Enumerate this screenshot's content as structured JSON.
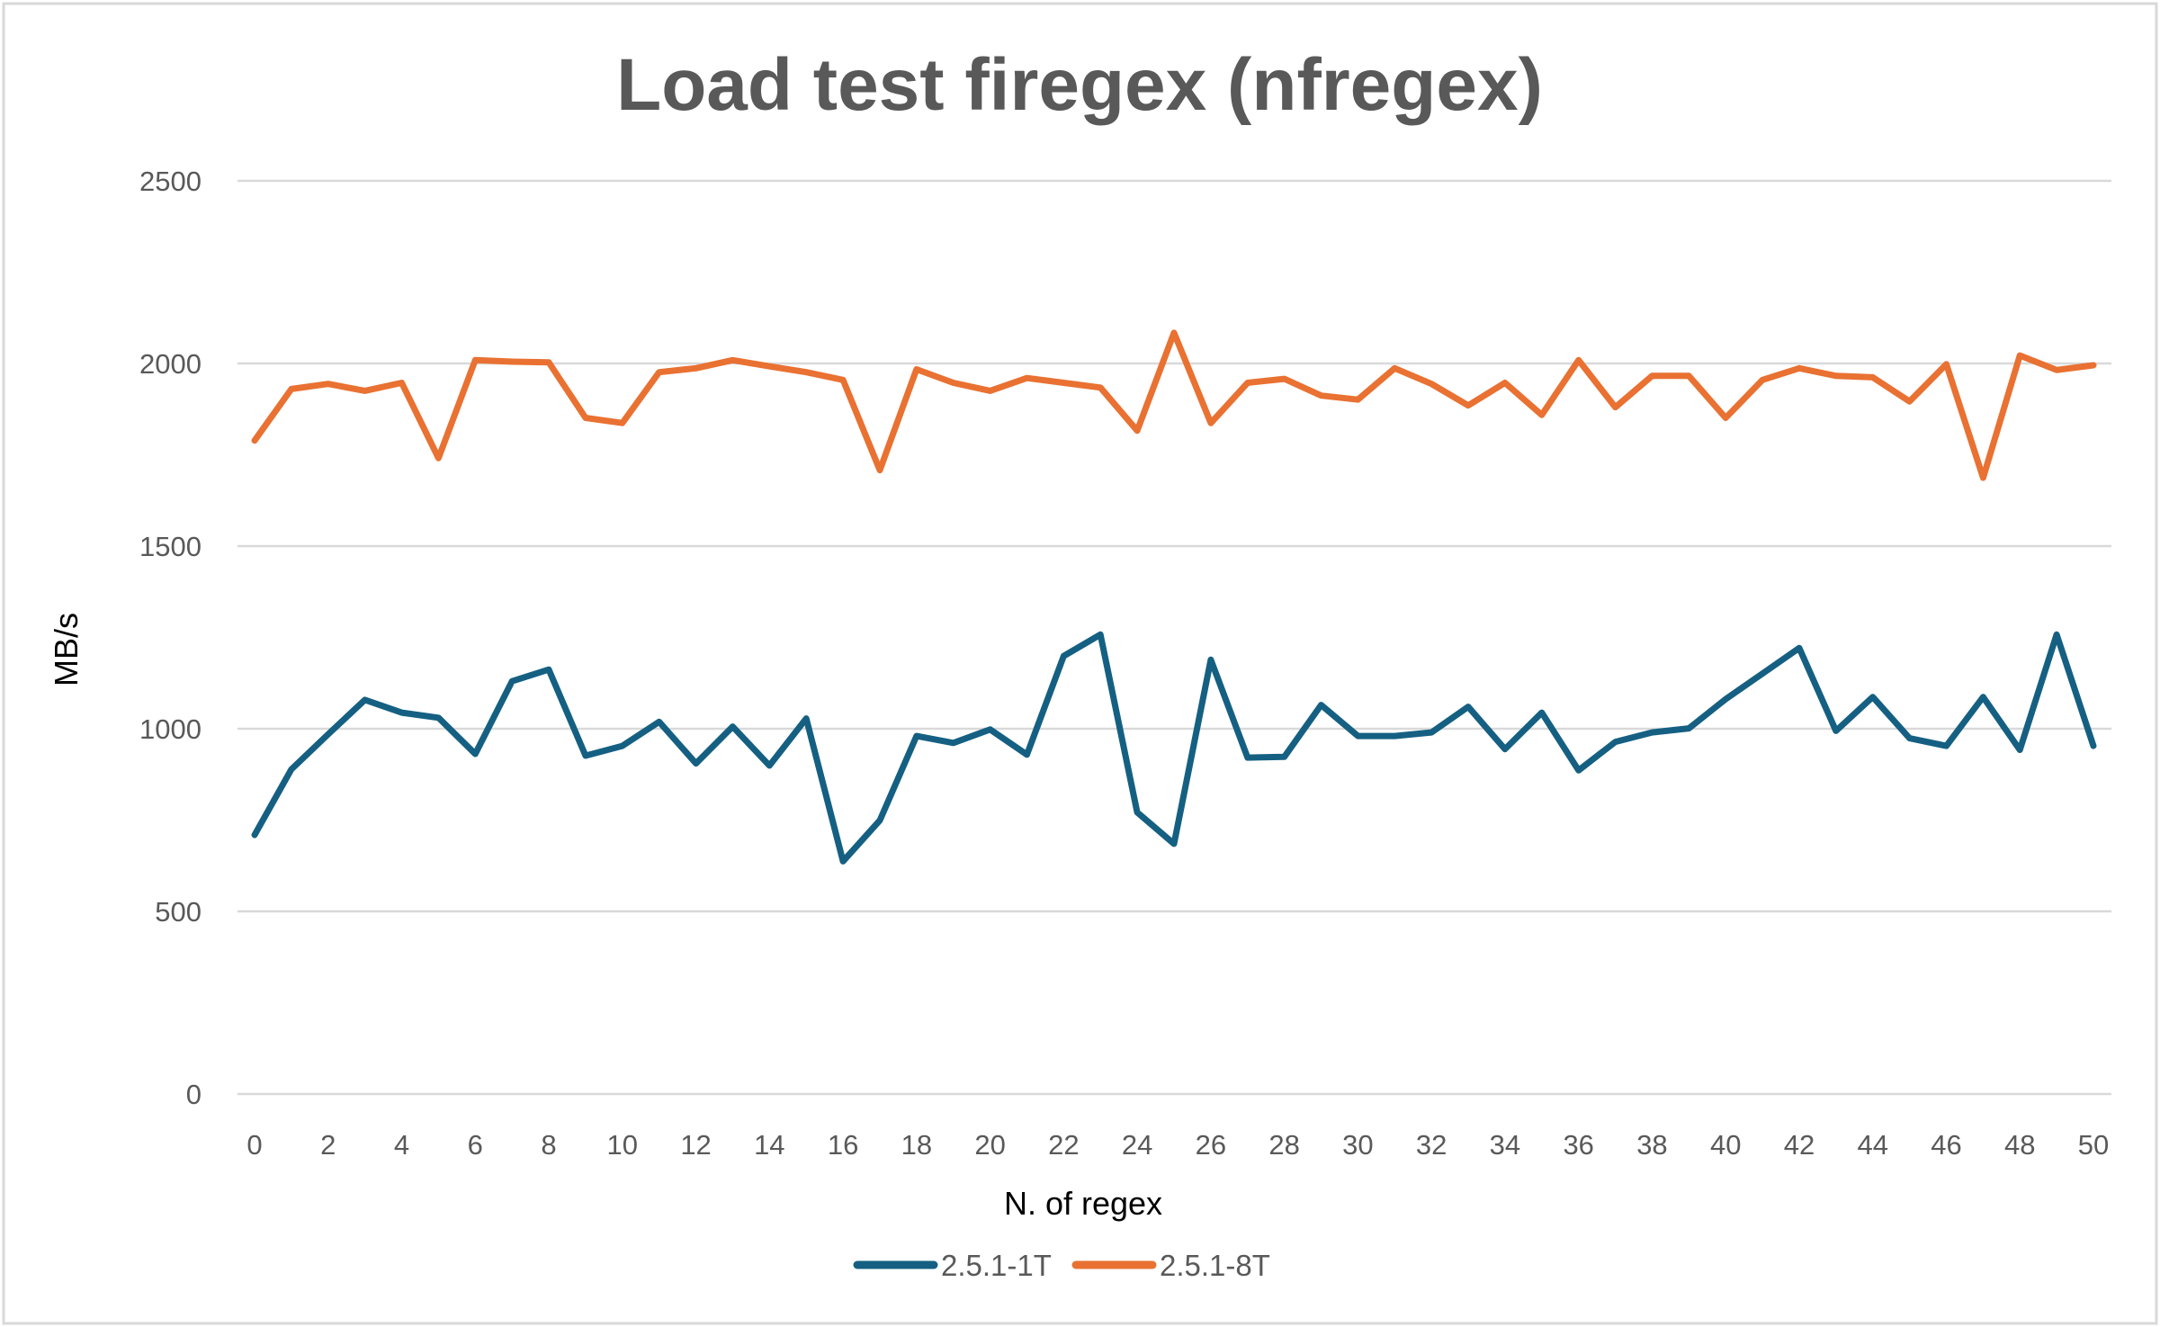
{
  "chart_data": {
    "type": "line",
    "title": "Load test firegex (nfregex)",
    "xlabel": "N. of regex",
    "ylabel": "MB/s",
    "xlim": [
      0,
      50
    ],
    "ylim": [
      0,
      2500
    ],
    "yticks": [
      0,
      500,
      1000,
      1500,
      2000,
      2500
    ],
    "xticks": [
      0,
      2,
      4,
      6,
      8,
      10,
      12,
      14,
      16,
      18,
      20,
      22,
      24,
      26,
      28,
      30,
      32,
      34,
      36,
      38,
      40,
      42,
      44,
      46,
      48,
      50
    ],
    "grid": "horizontal",
    "legend": "bottom",
    "x": [
      0,
      1,
      2,
      3,
      4,
      5,
      6,
      7,
      8,
      9,
      10,
      11,
      12,
      13,
      14,
      15,
      16,
      17,
      18,
      19,
      20,
      21,
      22,
      23,
      24,
      25,
      26,
      27,
      28,
      29,
      30,
      31,
      32,
      33,
      34,
      35,
      36,
      37,
      38,
      39,
      40,
      41,
      42,
      43,
      44,
      45,
      46,
      47,
      48,
      49,
      50
    ],
    "series": [
      {
        "name": "2.5.1-1T",
        "color": "#156082",
        "values": [
          709,
          889,
          985,
          1079,
          1044,
          1030,
          931,
          1130,
          1162,
          926,
          953,
          1019,
          905,
          1006,
          899,
          1028,
          637,
          749,
          980,
          961,
          998,
          929,
          1199,
          1258,
          771,
          685,
          1189,
          921,
          923,
          1065,
          980,
          980,
          990,
          1060,
          944,
          1044,
          886,
          964,
          990,
          1001,
          1081,
          1151,
          1221,
          994,
          1087,
          974,
          953,
          1087,
          942,
          1258,
          953
        ]
      },
      {
        "name": "2.5.1-8T",
        "color": "#E97132",
        "values": [
          1789,
          1930,
          1944,
          1925,
          1947,
          1741,
          2009,
          2005,
          2003,
          1851,
          1837,
          1976,
          1987,
          2009,
          1992,
          1976,
          1955,
          1708,
          1984,
          1947,
          1925,
          1960,
          1947,
          1934,
          1816,
          2084,
          1837,
          1947,
          1958,
          1912,
          1901,
          1987,
          1944,
          1885,
          1947,
          1859,
          2009,
          1880,
          1966,
          1966,
          1851,
          1955,
          1987,
          1966,
          1962,
          1896,
          1998,
          1687,
          2022,
          1982,
          1995
        ]
      }
    ]
  }
}
